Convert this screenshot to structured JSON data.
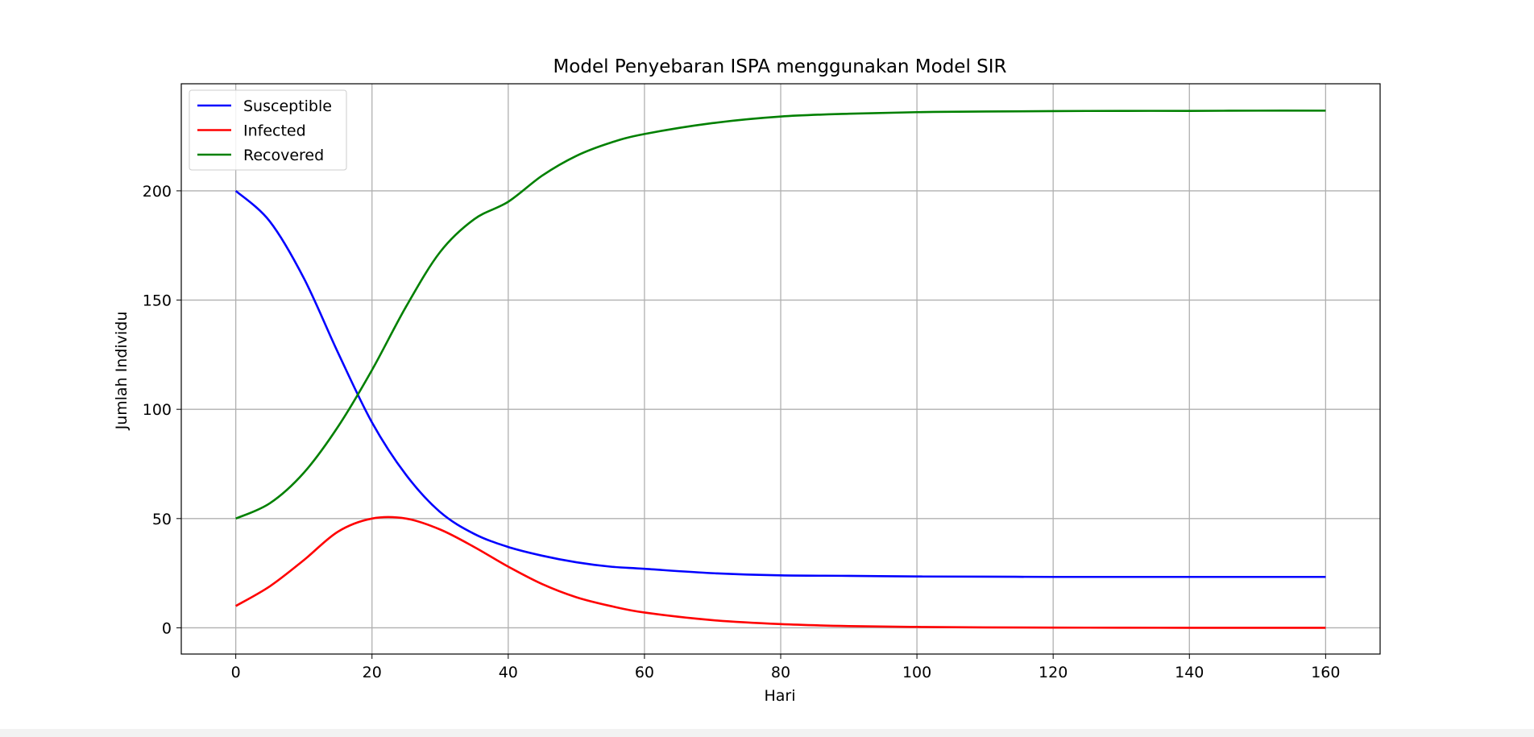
{
  "chart_data": {
    "type": "line",
    "title": "Model Penyebaran ISPA menggunakan Model SIR",
    "xlabel": "Hari",
    "ylabel": "Jumlah Individu",
    "xlim": [
      -8,
      168
    ],
    "ylim": [
      -12,
      249
    ],
    "xticks": [
      0,
      20,
      40,
      60,
      80,
      100,
      120,
      140,
      160
    ],
    "yticks": [
      0,
      50,
      100,
      150,
      200
    ],
    "grid": true,
    "legend_position": "top-left",
    "x": [
      0,
      5,
      10,
      15,
      20,
      25,
      30,
      35,
      40,
      45,
      50,
      55,
      60,
      70,
      80,
      90,
      100,
      110,
      120,
      130,
      140,
      150,
      160
    ],
    "series": [
      {
        "name": "Susceptible",
        "color": "#0000ff",
        "values": [
          200,
          186,
          160,
          126,
          94,
          70,
          53,
          43,
          37,
          33,
          30,
          28,
          27,
          25,
          24,
          23.8,
          23.5,
          23.4,
          23.3,
          23.3,
          23.3,
          23.3,
          23.3
        ]
      },
      {
        "name": "Infected",
        "color": "#ff0000",
        "values": [
          10,
          19,
          31,
          44,
          50,
          50,
          45,
          37,
          28,
          20,
          14,
          10,
          7,
          3.5,
          1.7,
          0.8,
          0.4,
          0.2,
          0.1,
          0.05,
          0.02,
          0.01,
          0
        ]
      },
      {
        "name": "Recovered",
        "color": "#008000",
        "values": [
          50,
          57,
          71,
          92,
          118,
          147,
          172,
          187,
          195,
          207,
          216,
          222,
          226,
          231,
          234,
          235.3,
          236,
          236.3,
          236.5,
          236.6,
          236.6,
          236.7,
          236.7
        ]
      }
    ]
  }
}
